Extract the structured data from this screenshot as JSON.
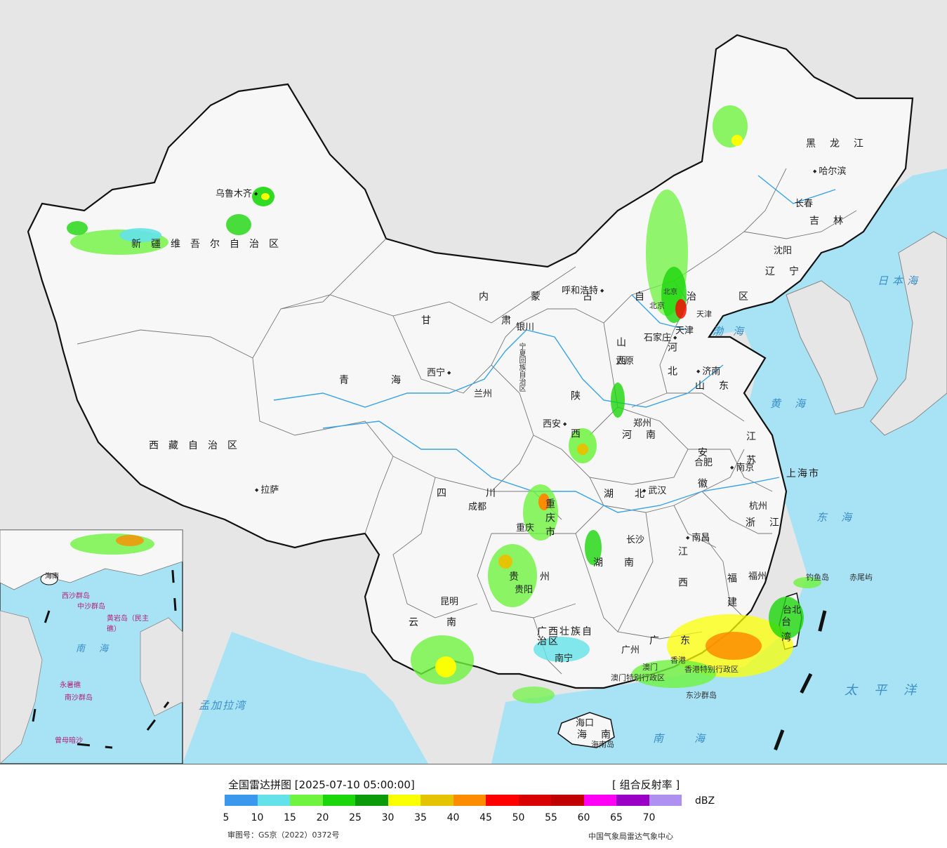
{
  "legend": {
    "title": "全国雷达拼图 [2025-07-10 05:00:00]",
    "product": "[ 组合反射率 ]",
    "unit": "dBZ",
    "ticks": [
      "5",
      "10",
      "15",
      "20",
      "25",
      "30",
      "35",
      "40",
      "45",
      "50",
      "55",
      "60",
      "65",
      "70"
    ],
    "colors": [
      "#3c98ec",
      "#63e2e9",
      "#6ef33e",
      "#1bd60b",
      "#0a9a0a",
      "#fbff03",
      "#e4c402",
      "#fe8c00",
      "#ff0000",
      "#d80000",
      "#c10000",
      "#ff00f5",
      "#9a00c4",
      "#ae90f0"
    ],
    "approval": "审图号：GS京（2022）0372号",
    "org": "中国气象局雷达气象中心"
  },
  "map": {
    "colors": {
      "land": "#f7f7f7",
      "foreign": "#e6e6e6",
      "sea": "#a8e3f5",
      "border": "#111111",
      "river": "#39a3e6"
    },
    "provinces": [
      "新疆维吾尔自治区",
      "西藏自治区",
      "青海",
      "甘肃",
      "内蒙古自治区",
      "黑龙江",
      "吉林",
      "辽宁",
      "河北",
      "山西",
      "山东",
      "河南",
      "陕西",
      "宁夏回族自治区",
      "四川",
      "重庆市",
      "湖北",
      "湖南",
      "江西",
      "安徽",
      "江苏",
      "浙江",
      "福建",
      "广东",
      "广西壮族自治区",
      "云南",
      "贵州",
      "海南",
      "台湾",
      "上海市",
      "北京",
      "天津"
    ],
    "cities": [
      "乌鲁木齐",
      "呼和浩特",
      "银川",
      "西宁",
      "兰州",
      "拉萨",
      "成都",
      "重庆",
      "西安",
      "郑州",
      "武汉",
      "长沙",
      "南昌",
      "合肥",
      "南京",
      "杭州",
      "福州",
      "广州",
      "南宁",
      "昆明",
      "贵阳",
      "海口",
      "哈尔滨",
      "长春",
      "沈阳",
      "北京",
      "天津",
      "石家庄",
      "太原",
      "济南",
      "台北",
      "香港",
      "澳门"
    ],
    "seas": [
      "日本海",
      "渤海",
      "黄海",
      "东海",
      "太平洋",
      "南海",
      "孟加拉湾"
    ],
    "islands": [
      "钓鱼岛",
      "赤尾屿",
      "东沙群岛",
      "海南岛",
      "香港特别行政区",
      "澳门特别行政区"
    ],
    "inset_labels": [
      "海南",
      "西沙群岛",
      "中沙群岛",
      "黄岩岛（民主礁）",
      "永暑礁",
      "南沙群岛",
      "曾母暗沙",
      "南海"
    ]
  }
}
